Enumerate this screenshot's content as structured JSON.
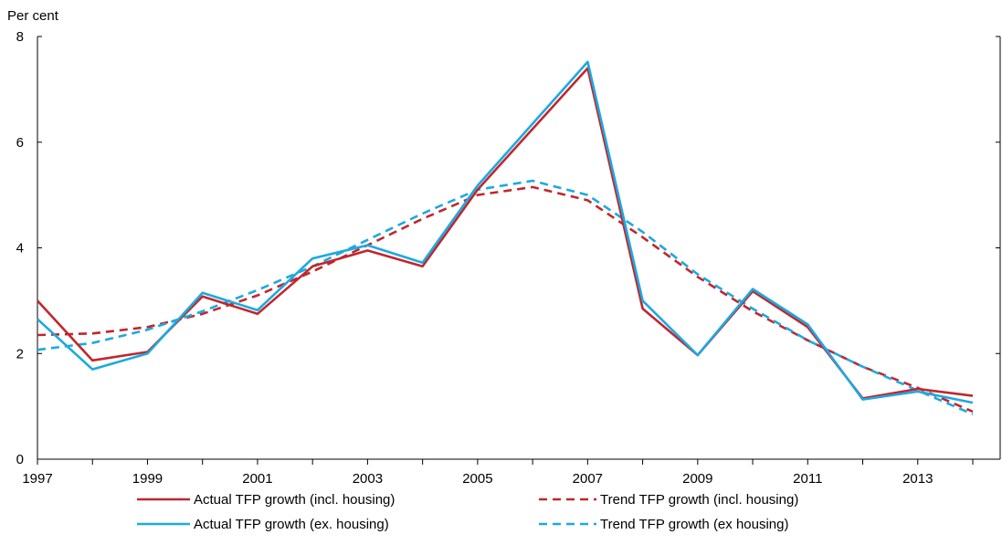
{
  "chart_data": {
    "type": "line",
    "y_unit_label": "Per cent",
    "ylim": [
      0,
      8
    ],
    "y_ticks": [
      0,
      2,
      4,
      6,
      8
    ],
    "x": [
      1997,
      1998,
      1999,
      2000,
      2001,
      2002,
      2003,
      2004,
      2005,
      2006,
      2007,
      2008,
      2009,
      2010,
      2011,
      2012,
      2013,
      2014
    ],
    "x_tick_labels": [
      "1997",
      "1999",
      "2001",
      "2003",
      "2005",
      "2007",
      "2009",
      "2011",
      "2013"
    ],
    "x_tick_values": [
      1997,
      1999,
      2001,
      2003,
      2005,
      2007,
      2009,
      2011,
      2013
    ],
    "grid": false,
    "legend_position": "bottom",
    "series": [
      {
        "name": "Actual TFP growth (incl. housing)",
        "color": "#c0272d",
        "style": "solid",
        "values": [
          3.0,
          1.87,
          2.03,
          3.08,
          2.75,
          3.65,
          3.95,
          3.65,
          5.1,
          6.25,
          7.4,
          2.85,
          1.97,
          3.18,
          2.5,
          1.15,
          1.33,
          1.2
        ]
      },
      {
        "name": "Trend TFP growth (incl. housing)",
        "color": "#c0272d",
        "style": "dashed",
        "values": [
          2.35,
          2.38,
          2.5,
          2.75,
          3.1,
          3.55,
          4.05,
          4.55,
          5.0,
          5.15,
          4.9,
          4.2,
          3.45,
          2.8,
          2.25,
          1.75,
          1.35,
          0.9
        ]
      },
      {
        "name": "Actual TFP growth (ex. housing)",
        "color": "#1ca9e1",
        "style": "solid",
        "values": [
          2.65,
          1.7,
          2.0,
          3.15,
          2.82,
          3.8,
          4.05,
          3.72,
          5.18,
          6.35,
          7.52,
          3.0,
          1.97,
          3.22,
          2.55,
          1.13,
          1.28,
          1.07
        ]
      },
      {
        "name": "Trend TFP growth (ex housing)",
        "color": "#1ca9e1",
        "style": "dashed",
        "values": [
          2.07,
          2.2,
          2.45,
          2.8,
          3.2,
          3.65,
          4.15,
          4.65,
          5.1,
          5.27,
          5.0,
          4.3,
          3.5,
          2.85,
          2.25,
          1.75,
          1.3,
          0.85
        ]
      }
    ]
  }
}
